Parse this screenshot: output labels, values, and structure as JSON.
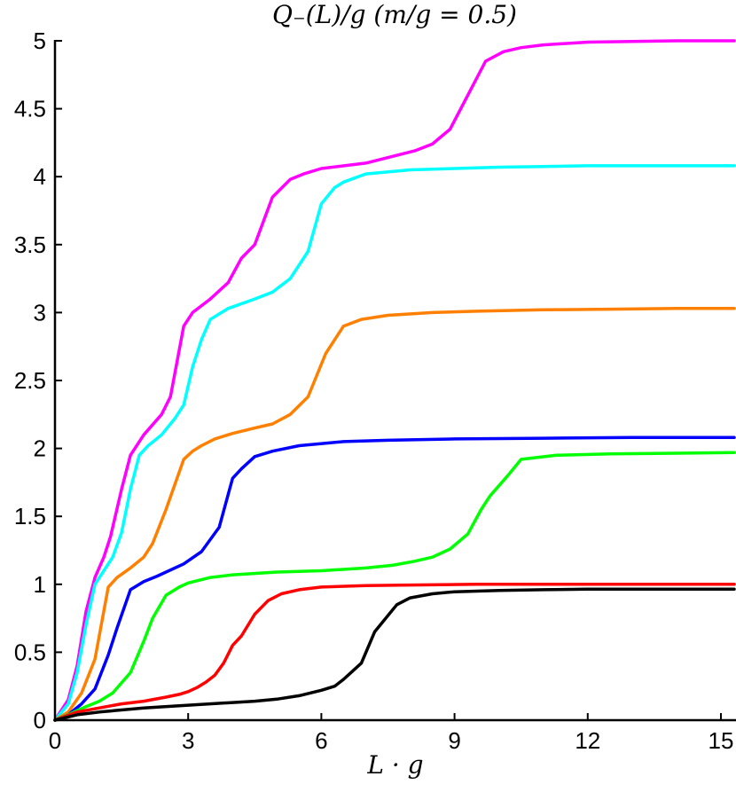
{
  "chart_data": {
    "type": "line",
    "title": "Q₋(L)/g (m/g = 0.5)",
    "xlabel": "L · g",
    "ylabel": "",
    "xlim": [
      0,
      15.3
    ],
    "ylim": [
      0,
      5
    ],
    "xticks": [
      0,
      3,
      6,
      9,
      12,
      15
    ],
    "yticks": [
      0,
      0.5,
      1,
      1.5,
      2,
      2.5,
      3,
      3.5,
      4,
      4.5,
      5
    ],
    "ytick_labels": [
      "0",
      "0.5",
      "1",
      "1.5",
      "2",
      "2.5",
      "3",
      "3.5",
      "4",
      "4.5",
      "5"
    ],
    "grid": false,
    "series": [
      {
        "color": "#ff00ff",
        "x": [
          0,
          0.3,
          0.5,
          0.7,
          0.9,
          1.1,
          1.25,
          1.5,
          1.7,
          2.0,
          2.4,
          2.6,
          2.9,
          3.1,
          3.5,
          3.9,
          4.2,
          4.5,
          4.9,
          5.3,
          5.6,
          6.0,
          7.0,
          8.1,
          8.5,
          8.9,
          9.3,
          9.7,
          10.1,
          10.5,
          11.0,
          12.0,
          13.0,
          14.0,
          15.3
        ],
        "y": [
          0,
          0.15,
          0.4,
          0.8,
          1.05,
          1.2,
          1.35,
          1.7,
          1.95,
          2.1,
          2.25,
          2.38,
          2.9,
          3.0,
          3.1,
          3.22,
          3.4,
          3.5,
          3.85,
          3.98,
          4.02,
          4.06,
          4.1,
          4.19,
          4.24,
          4.35,
          4.6,
          4.85,
          4.92,
          4.95,
          4.97,
          4.99,
          4.995,
          5.0,
          5.0
        ]
      },
      {
        "color": "#00ffff",
        "x": [
          0,
          0.3,
          0.5,
          0.7,
          0.9,
          1.1,
          1.3,
          1.5,
          1.7,
          1.9,
          2.1,
          2.4,
          2.7,
          2.9,
          3.1,
          3.3,
          3.5,
          3.9,
          4.5,
          4.9,
          5.3,
          5.7,
          6.0,
          6.3,
          6.5,
          7.0,
          8.0,
          9.0,
          10.0,
          11.0,
          12.0,
          13.0,
          15.3
        ],
        "y": [
          0,
          0.12,
          0.35,
          0.7,
          1.0,
          1.1,
          1.2,
          1.38,
          1.7,
          1.95,
          2.02,
          2.1,
          2.22,
          2.32,
          2.6,
          2.8,
          2.95,
          3.03,
          3.1,
          3.15,
          3.25,
          3.45,
          3.8,
          3.92,
          3.96,
          4.02,
          4.05,
          4.06,
          4.07,
          4.075,
          4.08,
          4.08,
          4.08
        ]
      },
      {
        "color": "#ff8000",
        "x": [
          0,
          0.3,
          0.6,
          0.9,
          1.2,
          1.4,
          1.7,
          2.0,
          2.2,
          2.5,
          2.9,
          3.1,
          3.3,
          3.6,
          4.0,
          4.5,
          4.9,
          5.3,
          5.7,
          6.1,
          6.5,
          6.9,
          7.5,
          8.5,
          9.5,
          11.0,
          12.5,
          14.0,
          15.3
        ],
        "y": [
          0,
          0.06,
          0.2,
          0.45,
          0.98,
          1.05,
          1.12,
          1.2,
          1.3,
          1.55,
          1.92,
          1.98,
          2.02,
          2.07,
          2.11,
          2.15,
          2.18,
          2.25,
          2.38,
          2.7,
          2.9,
          2.95,
          2.98,
          3.0,
          3.01,
          3.02,
          3.025,
          3.03,
          3.03
        ]
      },
      {
        "color": "#0000ff",
        "x": [
          0,
          0.3,
          0.6,
          0.9,
          1.2,
          1.4,
          1.7,
          2.0,
          2.3,
          2.9,
          3.3,
          3.7,
          4.0,
          4.2,
          4.5,
          4.9,
          5.5,
          6.5,
          7.5,
          9.0,
          11.0,
          13.0,
          15.3
        ],
        "y": [
          0,
          0.04,
          0.12,
          0.23,
          0.48,
          0.68,
          0.96,
          1.02,
          1.06,
          1.15,
          1.24,
          1.42,
          1.78,
          1.85,
          1.94,
          1.98,
          2.02,
          2.05,
          2.06,
          2.07,
          2.075,
          2.08,
          2.08
        ]
      },
      {
        "color": "#00ff00",
        "x": [
          0,
          0.3,
          0.7,
          1.0,
          1.3,
          1.7,
          2.0,
          2.2,
          2.5,
          2.8,
          3.0,
          3.5,
          4.0,
          5.0,
          6.0,
          7.0,
          7.6,
          8.1,
          8.5,
          8.9,
          9.3,
          9.6,
          9.8,
          10.2,
          10.5,
          11.3,
          12.5,
          14.0,
          15.3
        ],
        "y": [
          0,
          0.04,
          0.1,
          0.14,
          0.2,
          0.35,
          0.58,
          0.75,
          0.92,
          0.98,
          1.01,
          1.05,
          1.07,
          1.09,
          1.1,
          1.12,
          1.14,
          1.17,
          1.2,
          1.26,
          1.37,
          1.55,
          1.65,
          1.8,
          1.92,
          1.95,
          1.96,
          1.965,
          1.97
        ]
      },
      {
        "color": "#ff0000",
        "x": [
          0,
          0.5,
          1.0,
          1.5,
          2.0,
          2.5,
          2.8,
          3.0,
          3.2,
          3.4,
          3.6,
          3.8,
          4.0,
          4.2,
          4.5,
          4.8,
          5.1,
          5.5,
          6.0,
          7.0,
          8.0,
          9.5,
          11.0,
          13.0,
          15.3
        ],
        "y": [
          0,
          0.06,
          0.09,
          0.12,
          0.14,
          0.17,
          0.19,
          0.21,
          0.24,
          0.28,
          0.33,
          0.42,
          0.55,
          0.62,
          0.78,
          0.88,
          0.93,
          0.96,
          0.98,
          0.99,
          0.995,
          1.0,
          1.0,
          1.0,
          1.0
        ]
      },
      {
        "color": "#000000",
        "x": [
          0,
          0.5,
          1.0,
          2.0,
          3.0,
          4.0,
          4.5,
          5.0,
          5.5,
          6.0,
          6.3,
          6.5,
          6.9,
          7.2,
          7.7,
          8.0,
          8.5,
          9.0,
          10.0,
          11.0,
          12.0,
          13.0,
          15.3
        ],
        "y": [
          0,
          0.04,
          0.06,
          0.09,
          0.11,
          0.13,
          0.14,
          0.155,
          0.18,
          0.22,
          0.25,
          0.3,
          0.42,
          0.65,
          0.85,
          0.9,
          0.93,
          0.945,
          0.955,
          0.96,
          0.965,
          0.965,
          0.965
        ]
      }
    ]
  }
}
